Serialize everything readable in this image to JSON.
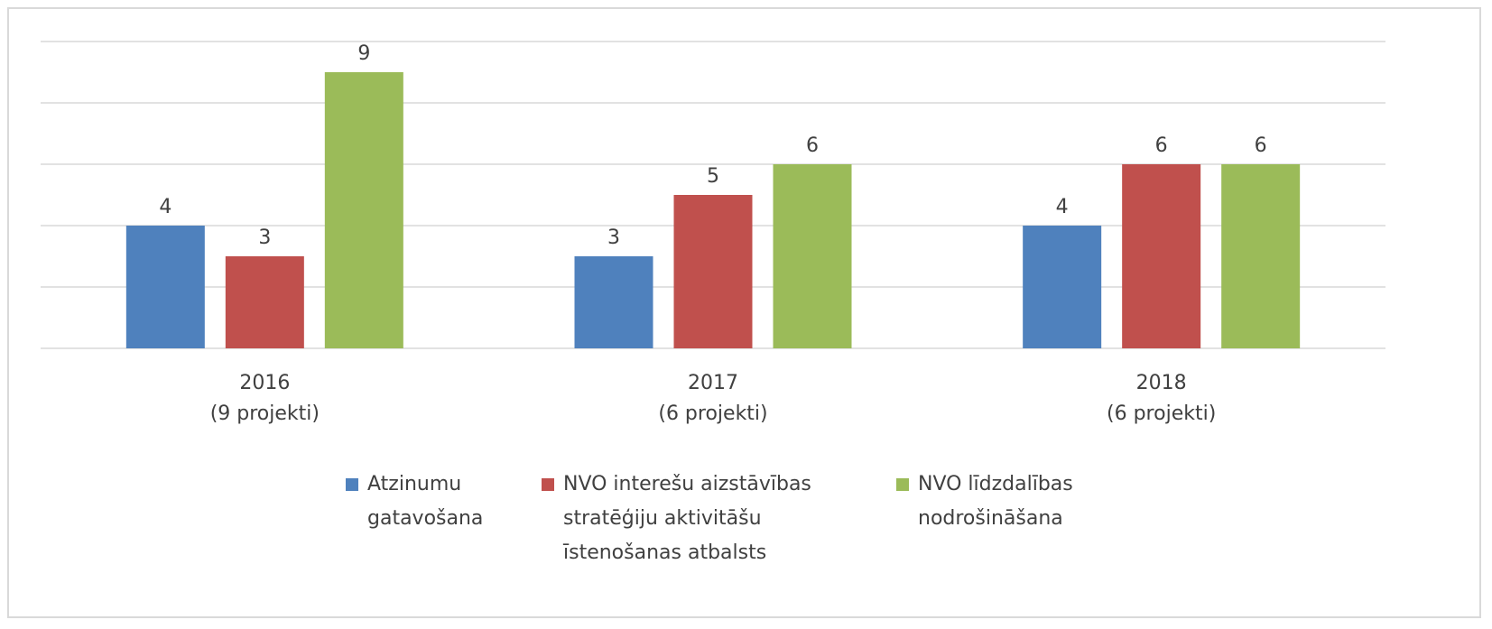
{
  "chart_data": {
    "type": "bar",
    "categories": [
      "2016\n(9 projekti)",
      "2017\n(6 projekti)",
      "2018\n(6 projekti)"
    ],
    "series": [
      {
        "name": "Atzinumu gatavošana",
        "color": "#4f81bd",
        "values": [
          4,
          3,
          4
        ]
      },
      {
        "name": "NVO interešu aizstāvības stratēģiju aktivitāšu īstenošanas atbalsts",
        "color": "#c0504d",
        "values": [
          3,
          5,
          6
        ]
      },
      {
        "name": "NVO līdzdalības nodrošināšana",
        "color": "#9bbb59",
        "values": [
          9,
          6,
          6
        ]
      }
    ],
    "ylim": [
      0,
      10
    ],
    "yticks": [
      0,
      2,
      4,
      6,
      8,
      10
    ],
    "grid": true,
    "legend": "bottom"
  }
}
